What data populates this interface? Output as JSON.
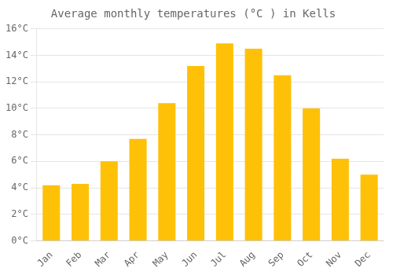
{
  "chart_data": {
    "type": "bar",
    "title": "Average monthly temperatures (°C ) in Kells",
    "categories": [
      "Jan",
      "Feb",
      "Mar",
      "Apr",
      "May",
      "Jun",
      "Jul",
      "Aug",
      "Sep",
      "Oct",
      "Nov",
      "Dec"
    ],
    "values": [
      4.2,
      4.3,
      6.0,
      7.7,
      10.4,
      13.2,
      14.9,
      14.5,
      12.5,
      10.0,
      6.2,
      5.0
    ],
    "color": "#FFC107",
    "ylim": [
      0,
      16
    ],
    "yticks": [
      {
        "value": 0,
        "label": "0°C"
      },
      {
        "value": 2,
        "label": "2°C"
      },
      {
        "value": 4,
        "label": "4°C"
      },
      {
        "value": 6,
        "label": "6°C"
      },
      {
        "value": 8,
        "label": "8°C"
      },
      {
        "value": 10,
        "label": "10°C"
      },
      {
        "value": 12,
        "label": "12°C"
      },
      {
        "value": 14,
        "label": "14°C"
      },
      {
        "value": 16,
        "label": "16°C"
      }
    ],
    "grid": true
  }
}
